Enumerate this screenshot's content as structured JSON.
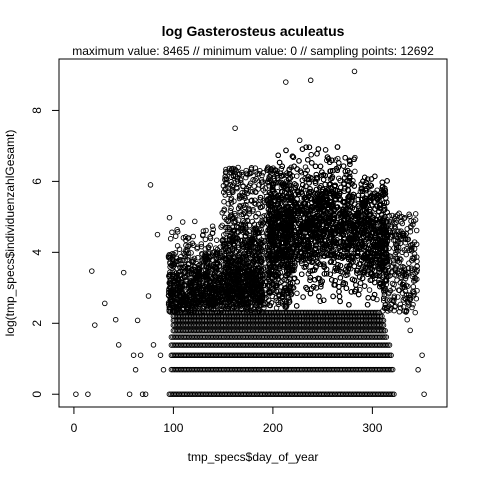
{
  "chart_data": {
    "type": "scatter",
    "title": "log Gasterosteus aculeatus",
    "subtitle": "maximum value: 8465  //  minimum value: 0  // sampling points: 12692",
    "xlabel": "tmp_specs$day_of_year",
    "ylabel": "log(tmp_specs$individuenzahlGesamt)",
    "xlim": [
      -15,
      375
    ],
    "ylim": [
      -0.36,
      9.45
    ],
    "x_ticks": [
      0,
      100,
      200,
      300
    ],
    "y_ticks": [
      0,
      2,
      4,
      6,
      8
    ],
    "grid": false,
    "marker": "open-circle",
    "outliers": [
      {
        "x": 2,
        "y": 0
      },
      {
        "x": 14,
        "y": 0
      },
      {
        "x": 18,
        "y": 3.47
      },
      {
        "x": 21,
        "y": 1.95
      },
      {
        "x": 31,
        "y": 2.56
      },
      {
        "x": 42,
        "y": 2.1
      },
      {
        "x": 45,
        "y": 1.39
      },
      {
        "x": 50,
        "y": 3.43
      },
      {
        "x": 56,
        "y": 0
      },
      {
        "x": 60,
        "y": 1.1
      },
      {
        "x": 62,
        "y": 0.69
      },
      {
        "x": 64,
        "y": 2.08
      },
      {
        "x": 67,
        "y": 1.1
      },
      {
        "x": 69,
        "y": 0
      },
      {
        "x": 72,
        "y": 0
      },
      {
        "x": 75,
        "y": 2.77
      },
      {
        "x": 77,
        "y": 5.9
      },
      {
        "x": 80,
        "y": 1.39
      },
      {
        "x": 84,
        "y": 4.5
      },
      {
        "x": 87,
        "y": 1.1
      },
      {
        "x": 90,
        "y": 0.69
      },
      {
        "x": 213,
        "y": 8.8
      },
      {
        "x": 238,
        "y": 8.85
      },
      {
        "x": 282,
        "y": 9.1
      },
      {
        "x": 162,
        "y": 7.5
      },
      {
        "x": 340,
        "y": 3.5
      },
      {
        "x": 345,
        "y": 3.5
      },
      {
        "x": 335,
        "y": 2.1
      },
      {
        "x": 338,
        "y": 1.8
      },
      {
        "x": 350,
        "y": 1.1
      },
      {
        "x": 352,
        "y": 0
      },
      {
        "x": 346,
        "y": 0.69
      },
      {
        "x": 343,
        "y": 2.3
      },
      {
        "x": 330,
        "y": 3.0
      }
    ]
  }
}
